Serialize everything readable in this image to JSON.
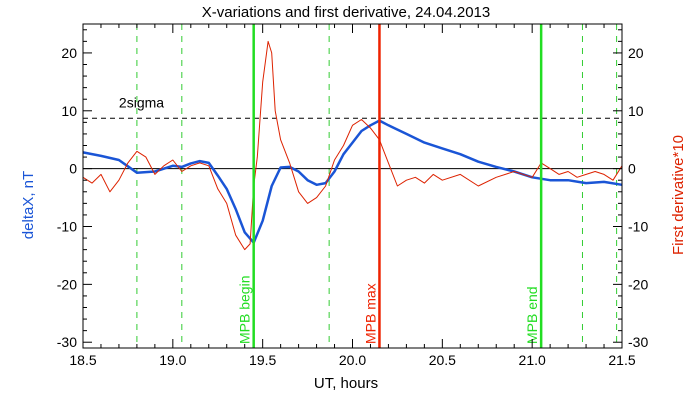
{
  "chart_data": {
    "type": "line",
    "title": "X-variations and first derivative, 24.04.2013",
    "xlabel": "UT, hours",
    "ylabel_left": "deltaX, nT",
    "ylabel_right": "First derivative*10",
    "xlim": [
      18.5,
      21.5
    ],
    "ylim": [
      -31,
      25
    ],
    "x_ticks": [
      "18.5",
      "19.0",
      "19.5",
      "20.0",
      "20.5",
      "21.0",
      "21.5"
    ],
    "y_ticks": [
      "-30",
      "-20",
      "-10",
      "0",
      "10",
      "20"
    ],
    "threshold": {
      "label": "2sigma",
      "value": 8.7,
      "color": "#000000",
      "style": "dashed"
    },
    "zero_line": 0,
    "dashed_markers": {
      "color": "#33cc33",
      "x": [
        18.8,
        19.05,
        19.87,
        21.28,
        21.47
      ]
    },
    "markers": [
      {
        "label": "MPB begin",
        "x": 19.45,
        "color": "#22dd22"
      },
      {
        "label": "MPB max",
        "x": 20.15,
        "color": "#ee2200"
      },
      {
        "label": "MPB end",
        "x": 21.05,
        "color": "#22dd22"
      }
    ],
    "series": [
      {
        "name": "deltaX, nT",
        "color": "#1a55d6",
        "x": [
          18.5,
          18.6,
          18.7,
          18.8,
          18.9,
          19.0,
          19.05,
          19.1,
          19.15,
          19.2,
          19.25,
          19.3,
          19.35,
          19.4,
          19.45,
          19.5,
          19.55,
          19.6,
          19.65,
          19.7,
          19.75,
          19.8,
          19.85,
          19.9,
          19.95,
          20.0,
          20.05,
          20.1,
          20.15,
          20.2,
          20.3,
          20.4,
          20.5,
          20.6,
          20.7,
          20.8,
          20.9,
          21.0,
          21.1,
          21.2,
          21.3,
          21.4,
          21.5
        ],
        "y": [
          2.8,
          2.2,
          1.5,
          -0.7,
          -0.5,
          0.5,
          0.3,
          0.9,
          1.3,
          1.0,
          -1.2,
          -3.5,
          -7.0,
          -11.0,
          -12.8,
          -9.0,
          -3.0,
          0.2,
          0.3,
          -0.5,
          -2.0,
          -2.8,
          -2.5,
          -0.5,
          2.5,
          4.5,
          6.5,
          7.5,
          8.3,
          7.5,
          6.0,
          4.5,
          3.5,
          2.5,
          1.2,
          0.3,
          -0.5,
          -1.5,
          -2.0,
          -2.0,
          -2.5,
          -2.3,
          -2.8
        ]
      },
      {
        "name": "First derivative*10",
        "color": "#dd2200",
        "x": [
          18.5,
          18.55,
          18.6,
          18.65,
          18.7,
          18.75,
          18.8,
          18.85,
          18.9,
          18.95,
          19.0,
          19.05,
          19.1,
          19.15,
          19.2,
          19.25,
          19.3,
          19.35,
          19.4,
          19.43,
          19.45,
          19.47,
          19.5,
          19.53,
          19.55,
          19.57,
          19.6,
          19.65,
          19.7,
          19.75,
          19.8,
          19.85,
          19.9,
          19.95,
          20.0,
          20.05,
          20.1,
          20.15,
          20.2,
          20.25,
          20.3,
          20.35,
          20.4,
          20.45,
          20.5,
          20.6,
          20.7,
          20.8,
          20.9,
          21.0,
          21.05,
          21.1,
          21.15,
          21.2,
          21.25,
          21.3,
          21.35,
          21.4,
          21.45,
          21.5
        ],
        "y": [
          -1.5,
          -2.5,
          -1.0,
          -4.0,
          -2.0,
          1.0,
          3.0,
          2.0,
          -1.0,
          0.5,
          1.5,
          -0.5,
          0.5,
          1.0,
          0.5,
          -3.5,
          -6.0,
          -11.5,
          -14.0,
          -13.0,
          -3.0,
          2.0,
          15.0,
          22.0,
          20.0,
          10.0,
          5.0,
          1.0,
          -4.0,
          -6.0,
          -5.0,
          -3.0,
          1.5,
          4.0,
          7.5,
          8.5,
          7.0,
          5.0,
          1.0,
          -3.0,
          -2.0,
          -1.5,
          -2.5,
          -1.0,
          -2.0,
          -1.0,
          -3.0,
          -1.5,
          -0.5,
          -1.5,
          1.0,
          0.0,
          -1.0,
          -0.5,
          -1.5,
          -1.0,
          -0.5,
          -1.0,
          -2.0,
          0.5
        ]
      }
    ]
  }
}
